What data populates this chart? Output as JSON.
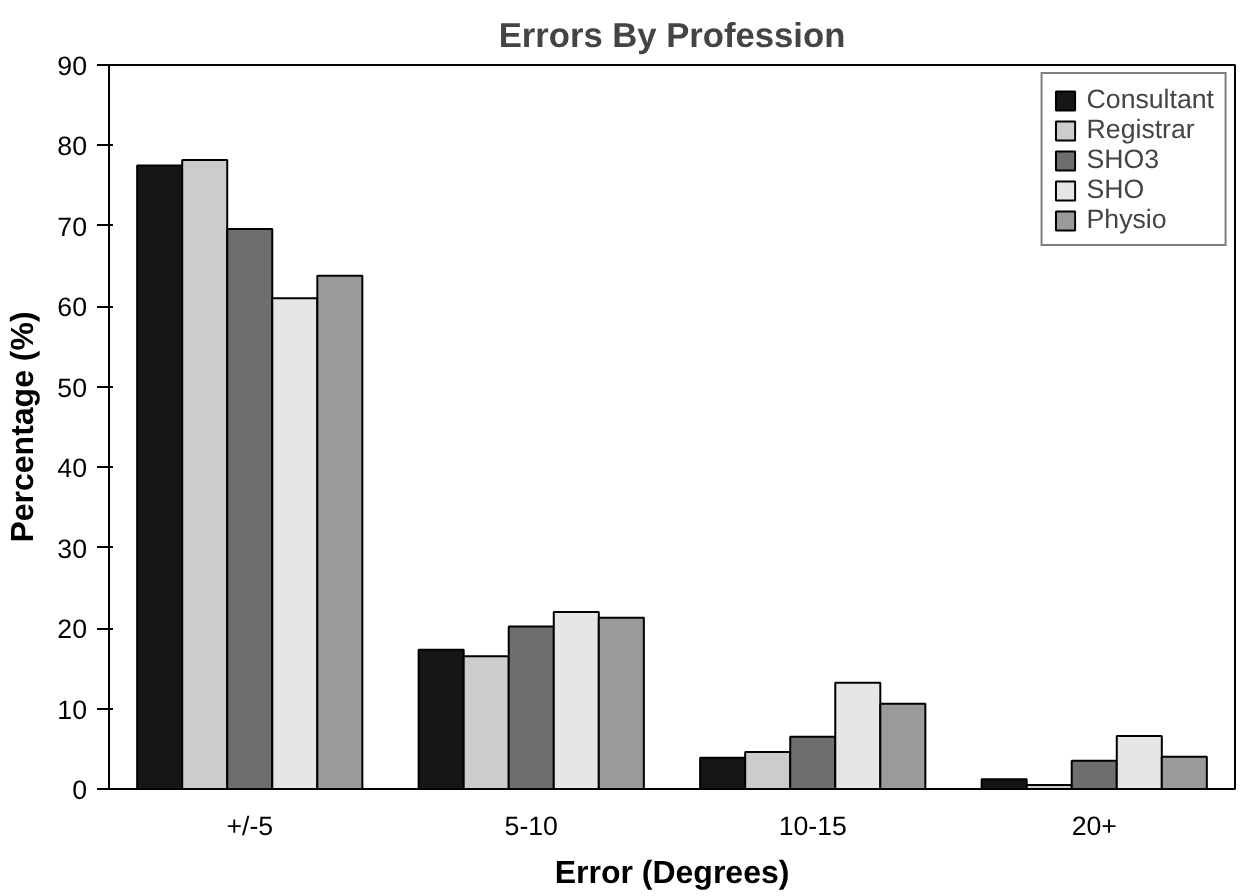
{
  "chart_data": {
    "type": "bar",
    "title": "Errors By Profession",
    "xlabel": "Error (Degrees)",
    "ylabel": "Percentage (%)",
    "categories": [
      "+/-5",
      "5-10",
      "10-15",
      "20+"
    ],
    "series": [
      {
        "name": "Consultant",
        "color": "#161616",
        "values": [
          77.5,
          17.3,
          3.9,
          1.2
        ]
      },
      {
        "name": "Registrar",
        "color": "#cccccc",
        "values": [
          78.2,
          16.5,
          4.6,
          0.5
        ]
      },
      {
        "name": "SHO3",
        "color": "#6e6e6e",
        "values": [
          69.6,
          20.2,
          6.5,
          3.5
        ]
      },
      {
        "name": "SHO",
        "color": "#e6e6e6",
        "values": [
          61,
          22,
          13.2,
          6.6
        ]
      },
      {
        "name": "Physio",
        "color": "#9a9a9a",
        "values": [
          63.8,
          21.3,
          10.6,
          4.0
        ]
      }
    ],
    "ylim": [
      0,
      90
    ],
    "yticks": [
      0,
      10,
      20,
      30,
      40,
      50,
      60,
      70,
      80,
      90
    ],
    "grid": false,
    "legend": "top right"
  }
}
